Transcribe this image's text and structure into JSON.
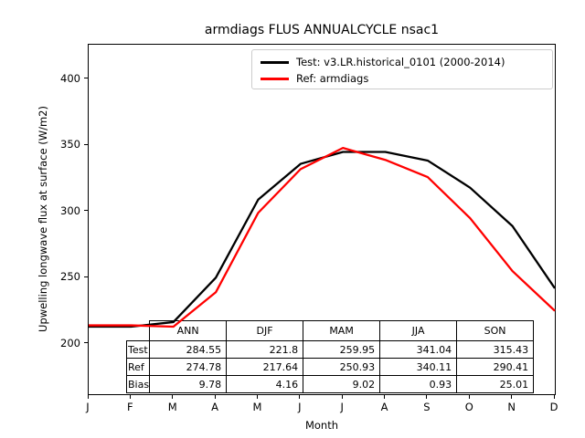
{
  "title": "armdiags FLUS ANNUALCYCLE nsac1",
  "y_axis": {
    "label": "Upwelling longwave flux at surface (W/m2)",
    "tick_labels": [
      "200",
      "250",
      "300",
      "350",
      "400"
    ],
    "tick_values": [
      200,
      250,
      300,
      350,
      400
    ]
  },
  "x_axis": {
    "label": "Month",
    "tick_labels": [
      "J",
      "F",
      "M",
      "A",
      "M",
      "J",
      "J",
      "A",
      "S",
      "O",
      "N",
      "D"
    ]
  },
  "legend": {
    "items": [
      {
        "label": "Test: v3.LR.historical_0101 (2000-2014)",
        "color": "#000000"
      },
      {
        "label": "Ref: armdiags",
        "color": "#ff0000"
      }
    ]
  },
  "stats_table": {
    "column_headers": [
      "ANN",
      "DJF",
      "MAM",
      "JJA",
      "SON"
    ],
    "rows": [
      {
        "label": "Test",
        "values": [
          "284.55",
          "221.8",
          "259.95",
          "341.04",
          "315.43"
        ]
      },
      {
        "label": "Ref",
        "values": [
          "274.78",
          "217.64",
          "250.93",
          "340.11",
          "290.41"
        ]
      },
      {
        "label": "Bias",
        "values": [
          "9.78",
          "4.16",
          "9.02",
          "0.93",
          "25.01"
        ]
      }
    ]
  },
  "chart_data": {
    "type": "line",
    "title": "armdiags FLUS ANNUALCYCLE nsac1",
    "xlabel": "Month",
    "ylabel": "Upwelling longwave flux at surface (W/m2)",
    "x_categories": [
      "J",
      "F",
      "M",
      "A",
      "M",
      "J",
      "J",
      "A",
      "S",
      "O",
      "N",
      "D"
    ],
    "x": [
      1,
      2,
      3,
      4,
      5,
      6,
      7,
      8,
      9,
      10,
      11,
      12
    ],
    "series": [
      {
        "name": "Test: v3.LR.historical_0101 (2000-2014)",
        "color": "#000000",
        "values": [
          213,
          213,
          216.5,
          250,
          309,
          336,
          345,
          345,
          338.5,
          318,
          289,
          242
        ]
      },
      {
        "name": "Ref: armdiags",
        "color": "#ff0000",
        "values": [
          214,
          214,
          213,
          239,
          299,
          332,
          348,
          339,
          326,
          295,
          255,
          225
        ]
      }
    ],
    "xlim": [
      1,
      12
    ],
    "ylim": [
      162,
      426
    ],
    "yticks": [
      200,
      250,
      300,
      350,
      400
    ],
    "grid": false,
    "legend_position": "upper right"
  },
  "colors": {
    "test_line": "#000000",
    "ref_line": "#ff0000",
    "legend_border": "#cccccc",
    "background": "#ffffff",
    "text": "#000000"
  }
}
